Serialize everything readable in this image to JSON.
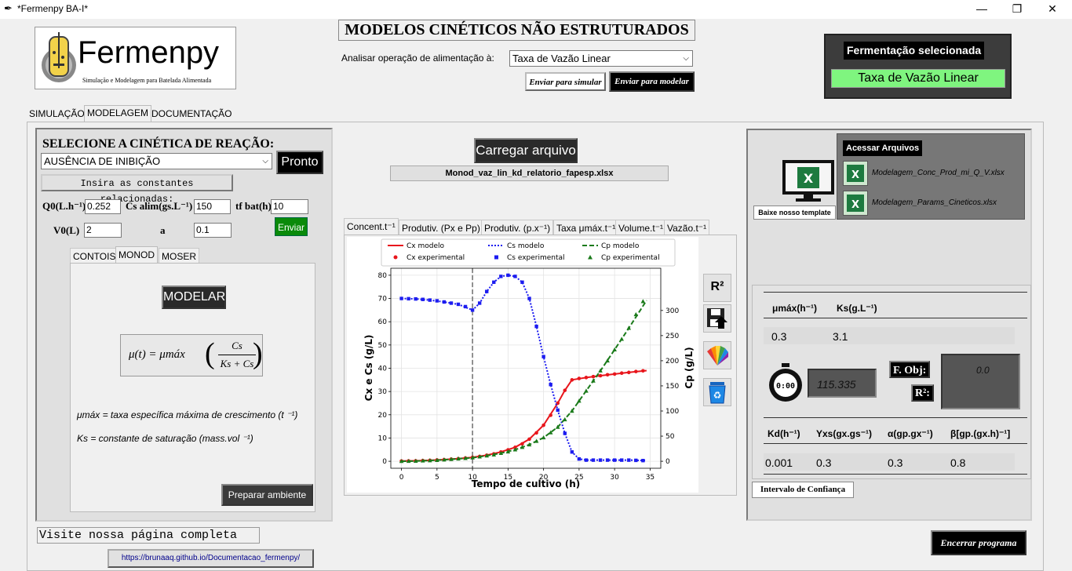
{
  "window": {
    "title": "*Fermenpy BA-I*",
    "minimize": "—",
    "restore": "❐",
    "close": "✕"
  },
  "logo": {
    "name": "Fermenpy",
    "tagline": "Simulação e Modelagem para Batelada Alimentada"
  },
  "header": {
    "title": "MODELOS CINÉTICOS NÃO ESTRUTURADOS",
    "feed_label": "Analisar operação de alimentação à:",
    "feed_value": "Taxa de Vazão Linear",
    "send_simulate": "Enviar para simular",
    "send_model": "Enviar para modelar"
  },
  "selected": {
    "title": "Fermentação selecionada",
    "value": "Taxa de Vazão Linear"
  },
  "main_tabs": [
    "SIMULAÇÃO",
    "MODELAGEM",
    "DOCUMENTAÇÃO"
  ],
  "left": {
    "select_title": "SELECIONE A CINÉTICA DE REAÇÃO:",
    "kinetic_value": "AUSÊNCIA DE INIBIÇÃO",
    "ready_button": "Pronto",
    "constants_label": "Insira as constantes relacionadas:",
    "q0_label": "Q0(L.h⁻¹)",
    "q0_value": "0.252",
    "cs_label": "Cs alim(gs.L⁻¹)",
    "cs_value": "150",
    "tf_label": "tf bat(h)",
    "tf_value": "10",
    "v0_label": "V0(L)",
    "v0_value": "2",
    "a_label": "a",
    "a_value": "0.1",
    "send_button": "Enviar",
    "model_tabs": [
      "CONTOIS",
      "MONOD",
      "MOSER"
    ],
    "model_button": "MODELAR",
    "eq_lhs": "μ(t) = μmáx",
    "eq_num": "Cs",
    "eq_den": "Ks + Cs",
    "def1": "μmáx = taxa específica máxima de crescimento (t ⁻¹)",
    "def2": "Ks = constante de saturação (mass.vol ⁻¹)",
    "prepare_button": "Preparar ambiente"
  },
  "center": {
    "load_button": "Carregar arquivo",
    "filename": "Monod_vaz_lin_kd_relatorio_fapesp.xlsx",
    "plot_tabs": [
      "Concent.t⁻¹",
      "Produtiv. (Px e Pp)",
      "Produtiv. (p.x⁻¹)",
      "Taxa μmáx.t⁻¹",
      "Volume.t⁻¹",
      "Vazão.t⁻¹"
    ],
    "r2_button": "R²"
  },
  "right": {
    "template_label": "Baixe nosso template",
    "access_label": "Acessar Arquivos",
    "file1": "Modelagem_Conc_Prod_mi_Q_V.xlsx",
    "file2": "Modelagem_Params_Cineticos.xlsx",
    "p1_label": "μmáx(h⁻¹)",
    "p2_label": "Ks(g.L⁻¹)",
    "p1_value": "0.3",
    "p2_value": "3.1",
    "timer_label": "0:00",
    "time_value": "115.335",
    "fobj_label": "F. Obj:",
    "fobj_value": "0.0",
    "r2_label": "R²:",
    "kd_label": "Kd(h⁻¹)",
    "yxs_label": "Yxs(gx.gs⁻¹)",
    "alpha_label": "α(gp.gx⁻¹)",
    "beta_label": "β[gp.(gx.h)⁻¹]",
    "kd_value": "0.001",
    "yxs_value": "0.3",
    "alpha_value": "0.3",
    "beta_value": "0.8",
    "ci_button": "Intervalo de Confiança"
  },
  "footer": {
    "visit_label": "Visite nossa página completa",
    "url": "https://brunaaq.github.io/Documentacao_fermenpy/",
    "exit_button": "Encerrar programa"
  },
  "chart_data": {
    "type": "line",
    "xlabel": "Tempo de cultivo (h)",
    "ylabel": "Cx e Cs (g/L)",
    "y2label": "Cp (g/L)",
    "xlim": [
      -1.5,
      36.5
    ],
    "ylim": [
      -3,
      83
    ],
    "y2lim": [
      -13.9,
      384
    ],
    "xticks": [
      0,
      5,
      10,
      15,
      20,
      25,
      30,
      35
    ],
    "yticks": [
      0,
      10,
      20,
      30,
      40,
      50,
      60,
      70,
      80
    ],
    "y2ticks": [
      0,
      50,
      100,
      150,
      200,
      250,
      300
    ],
    "grid": true,
    "legend_position": "top",
    "vline_x": 10,
    "series": [
      {
        "name": "Cx modelo",
        "style": "line",
        "color": "#e8161c",
        "axis": "left",
        "x": [
          0,
          2,
          4,
          6,
          8,
          10,
          12,
          14,
          16,
          18,
          20,
          22,
          23,
          24,
          25,
          26,
          28,
          30,
          32,
          34.5
        ],
        "y": [
          0.1,
          0.2,
          0.4,
          0.7,
          1.1,
          1.7,
          2.6,
          4.0,
          6.0,
          9.5,
          15.5,
          25.0,
          30.5,
          35.0,
          35.5,
          36.0,
          36.8,
          37.5,
          38.2,
          39.0
        ]
      },
      {
        "name": "Cx experimental",
        "style": "marker-circle",
        "color": "#e8161c",
        "axis": "left",
        "x": [
          0,
          1,
          2,
          3,
          4,
          5,
          6,
          7,
          8,
          9,
          10,
          11,
          12,
          13,
          14,
          15,
          16,
          17,
          18,
          19,
          20,
          21,
          22,
          23,
          24,
          25,
          26,
          27,
          28,
          29,
          30,
          31,
          32,
          33,
          34
        ],
        "y": [
          0.1,
          0.15,
          0.2,
          0.3,
          0.4,
          0.55,
          0.7,
          0.9,
          1.1,
          1.4,
          1.7,
          2.1,
          2.6,
          3.2,
          4.0,
          4.9,
          6.0,
          7.5,
          9.5,
          12.2,
          15.5,
          19.8,
          25.0,
          30.5,
          35.0,
          35.6,
          36.0,
          36.4,
          36.8,
          37.2,
          37.5,
          37.9,
          38.2,
          38.6,
          38.9
        ]
      },
      {
        "name": "Cs modelo",
        "style": "dotted",
        "color": "#1c1cf0",
        "axis": "left",
        "x": [
          0,
          2,
          4,
          6,
          8,
          10,
          11,
          12,
          13,
          14,
          15,
          16,
          17,
          18,
          19,
          20,
          21,
          22,
          23,
          24,
          25,
          26,
          28,
          30,
          32,
          34.5
        ],
        "y": [
          70,
          69.8,
          69.3,
          68.5,
          67.5,
          65,
          68,
          73,
          77,
          79.5,
          80,
          79.5,
          77,
          70,
          58,
          45,
          33,
          22,
          12,
          4,
          1,
          0.5,
          0.5,
          0.5,
          0.5,
          0.3
        ]
      },
      {
        "name": "Cs experimental",
        "style": "marker-square",
        "color": "#1c1cf0",
        "axis": "left",
        "x": [
          0,
          1,
          2,
          3,
          4,
          5,
          6,
          7,
          8,
          9,
          10,
          11,
          12,
          13,
          14,
          15,
          16,
          17,
          18,
          19,
          20,
          21,
          22,
          23,
          24,
          25,
          26,
          27,
          28,
          29,
          30,
          31,
          32,
          33,
          34
        ],
        "y": [
          70,
          69.9,
          69.8,
          69.6,
          69.3,
          69.0,
          68.5,
          68.0,
          67.5,
          66.5,
          65,
          68,
          73,
          77,
          79.5,
          80,
          79.5,
          77,
          70,
          58,
          45,
          33,
          22,
          12,
          4,
          1,
          0.5,
          0.5,
          0.5,
          0.5,
          0.5,
          0.5,
          0.5,
          0.4,
          0.3
        ]
      },
      {
        "name": "Cp modelo",
        "style": "dashed",
        "color": "#1a7a1a",
        "axis": "right",
        "x": [
          0,
          2,
          4,
          6,
          8,
          10,
          12,
          14,
          16,
          18,
          20,
          22,
          24,
          26,
          28,
          30,
          32,
          34.5
        ],
        "y": [
          0,
          0.5,
          1.5,
          3,
          5,
          7,
          11,
          16,
          23,
          33,
          47,
          68,
          100,
          140,
          180,
          222,
          265,
          320
        ]
      },
      {
        "name": "Cp experimental",
        "style": "marker-triangle",
        "color": "#1a7a1a",
        "axis": "right",
        "x": [
          0,
          1,
          2,
          3,
          4,
          5,
          6,
          7,
          8,
          9,
          10,
          11,
          12,
          13,
          14,
          15,
          16,
          17,
          18,
          19,
          20,
          21,
          22,
          23,
          24,
          25,
          26,
          27,
          28,
          29,
          30,
          31,
          32,
          33,
          34
        ],
        "y": [
          0,
          0.2,
          0.5,
          1,
          1.5,
          2,
          3,
          4,
          5,
          6,
          7,
          9,
          11,
          13,
          16,
          19,
          23,
          28,
          33,
          40,
          47,
          57,
          68,
          83,
          100,
          120,
          140,
          160,
          180,
          200,
          222,
          243,
          265,
          292,
          318
        ]
      }
    ]
  }
}
